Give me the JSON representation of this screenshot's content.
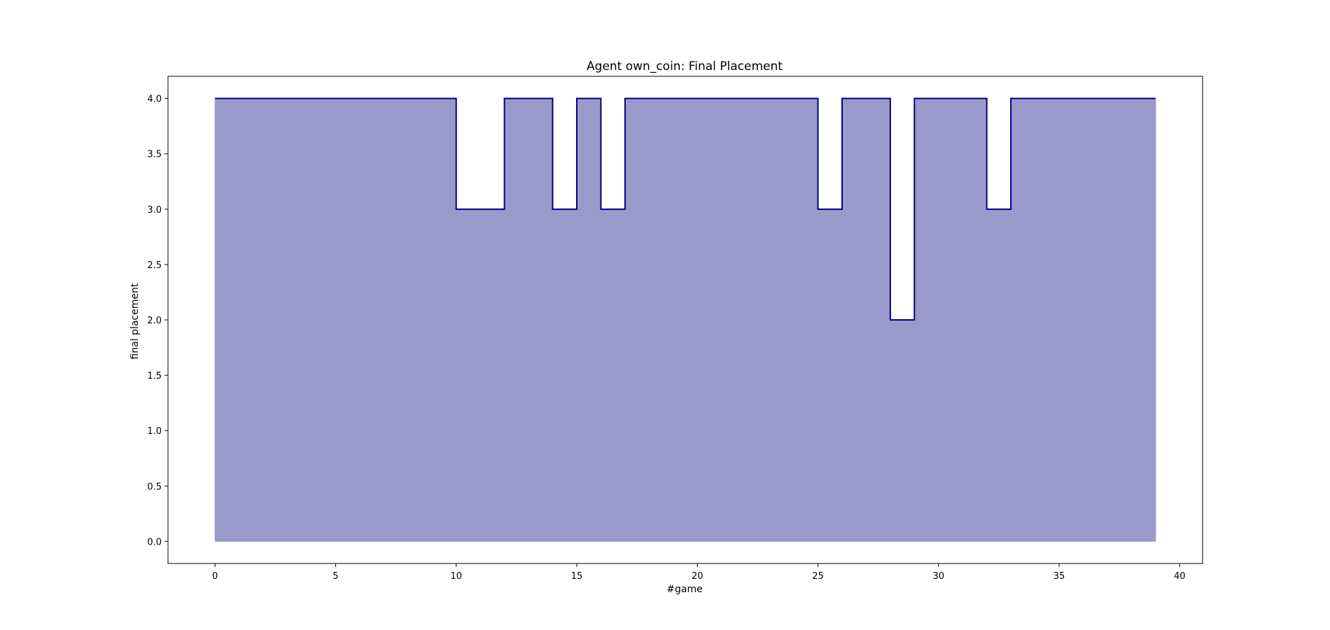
{
  "chart_data": {
    "type": "area",
    "title": "Agent own_coin: Final Placement",
    "xlabel": "#game",
    "ylabel": "final placement",
    "xlim": [
      -1.95,
      40.95
    ],
    "ylim": [
      -0.2,
      4.2
    ],
    "xticks": [
      0,
      5,
      10,
      15,
      20,
      25,
      30,
      35,
      40
    ],
    "xtick_labels": [
      "0",
      "5",
      "10",
      "15",
      "20",
      "25",
      "30",
      "35",
      "40"
    ],
    "yticks": [
      0.0,
      0.5,
      1.0,
      1.5,
      2.0,
      2.5,
      3.0,
      3.5,
      4.0
    ],
    "ytick_labels": [
      "0.0",
      "0.5",
      "1.0",
      "1.5",
      "2.0",
      "2.5",
      "3.0",
      "3.5",
      "4.0"
    ],
    "step": "post",
    "grid": false,
    "line_color": "#00007f",
    "fill_color": "#9999cc",
    "series": [
      {
        "x": [
          0,
          1,
          2,
          3,
          4,
          5,
          6,
          7,
          8,
          9,
          10,
          11,
          12,
          13,
          14,
          15,
          16,
          17,
          18,
          19,
          20,
          21,
          22,
          23,
          24,
          25,
          26,
          27,
          28,
          29,
          30,
          31,
          32,
          33,
          34,
          35,
          36,
          37,
          38,
          39
        ],
        "values": [
          4,
          4,
          4,
          4,
          4,
          4,
          4,
          4,
          4,
          4,
          3,
          3,
          4,
          4,
          3,
          4,
          3,
          4,
          4,
          4,
          4,
          4,
          4,
          4,
          4,
          3,
          4,
          4,
          2,
          4,
          4,
          4,
          3,
          4,
          4,
          4,
          4,
          4,
          4,
          4
        ]
      }
    ]
  }
}
